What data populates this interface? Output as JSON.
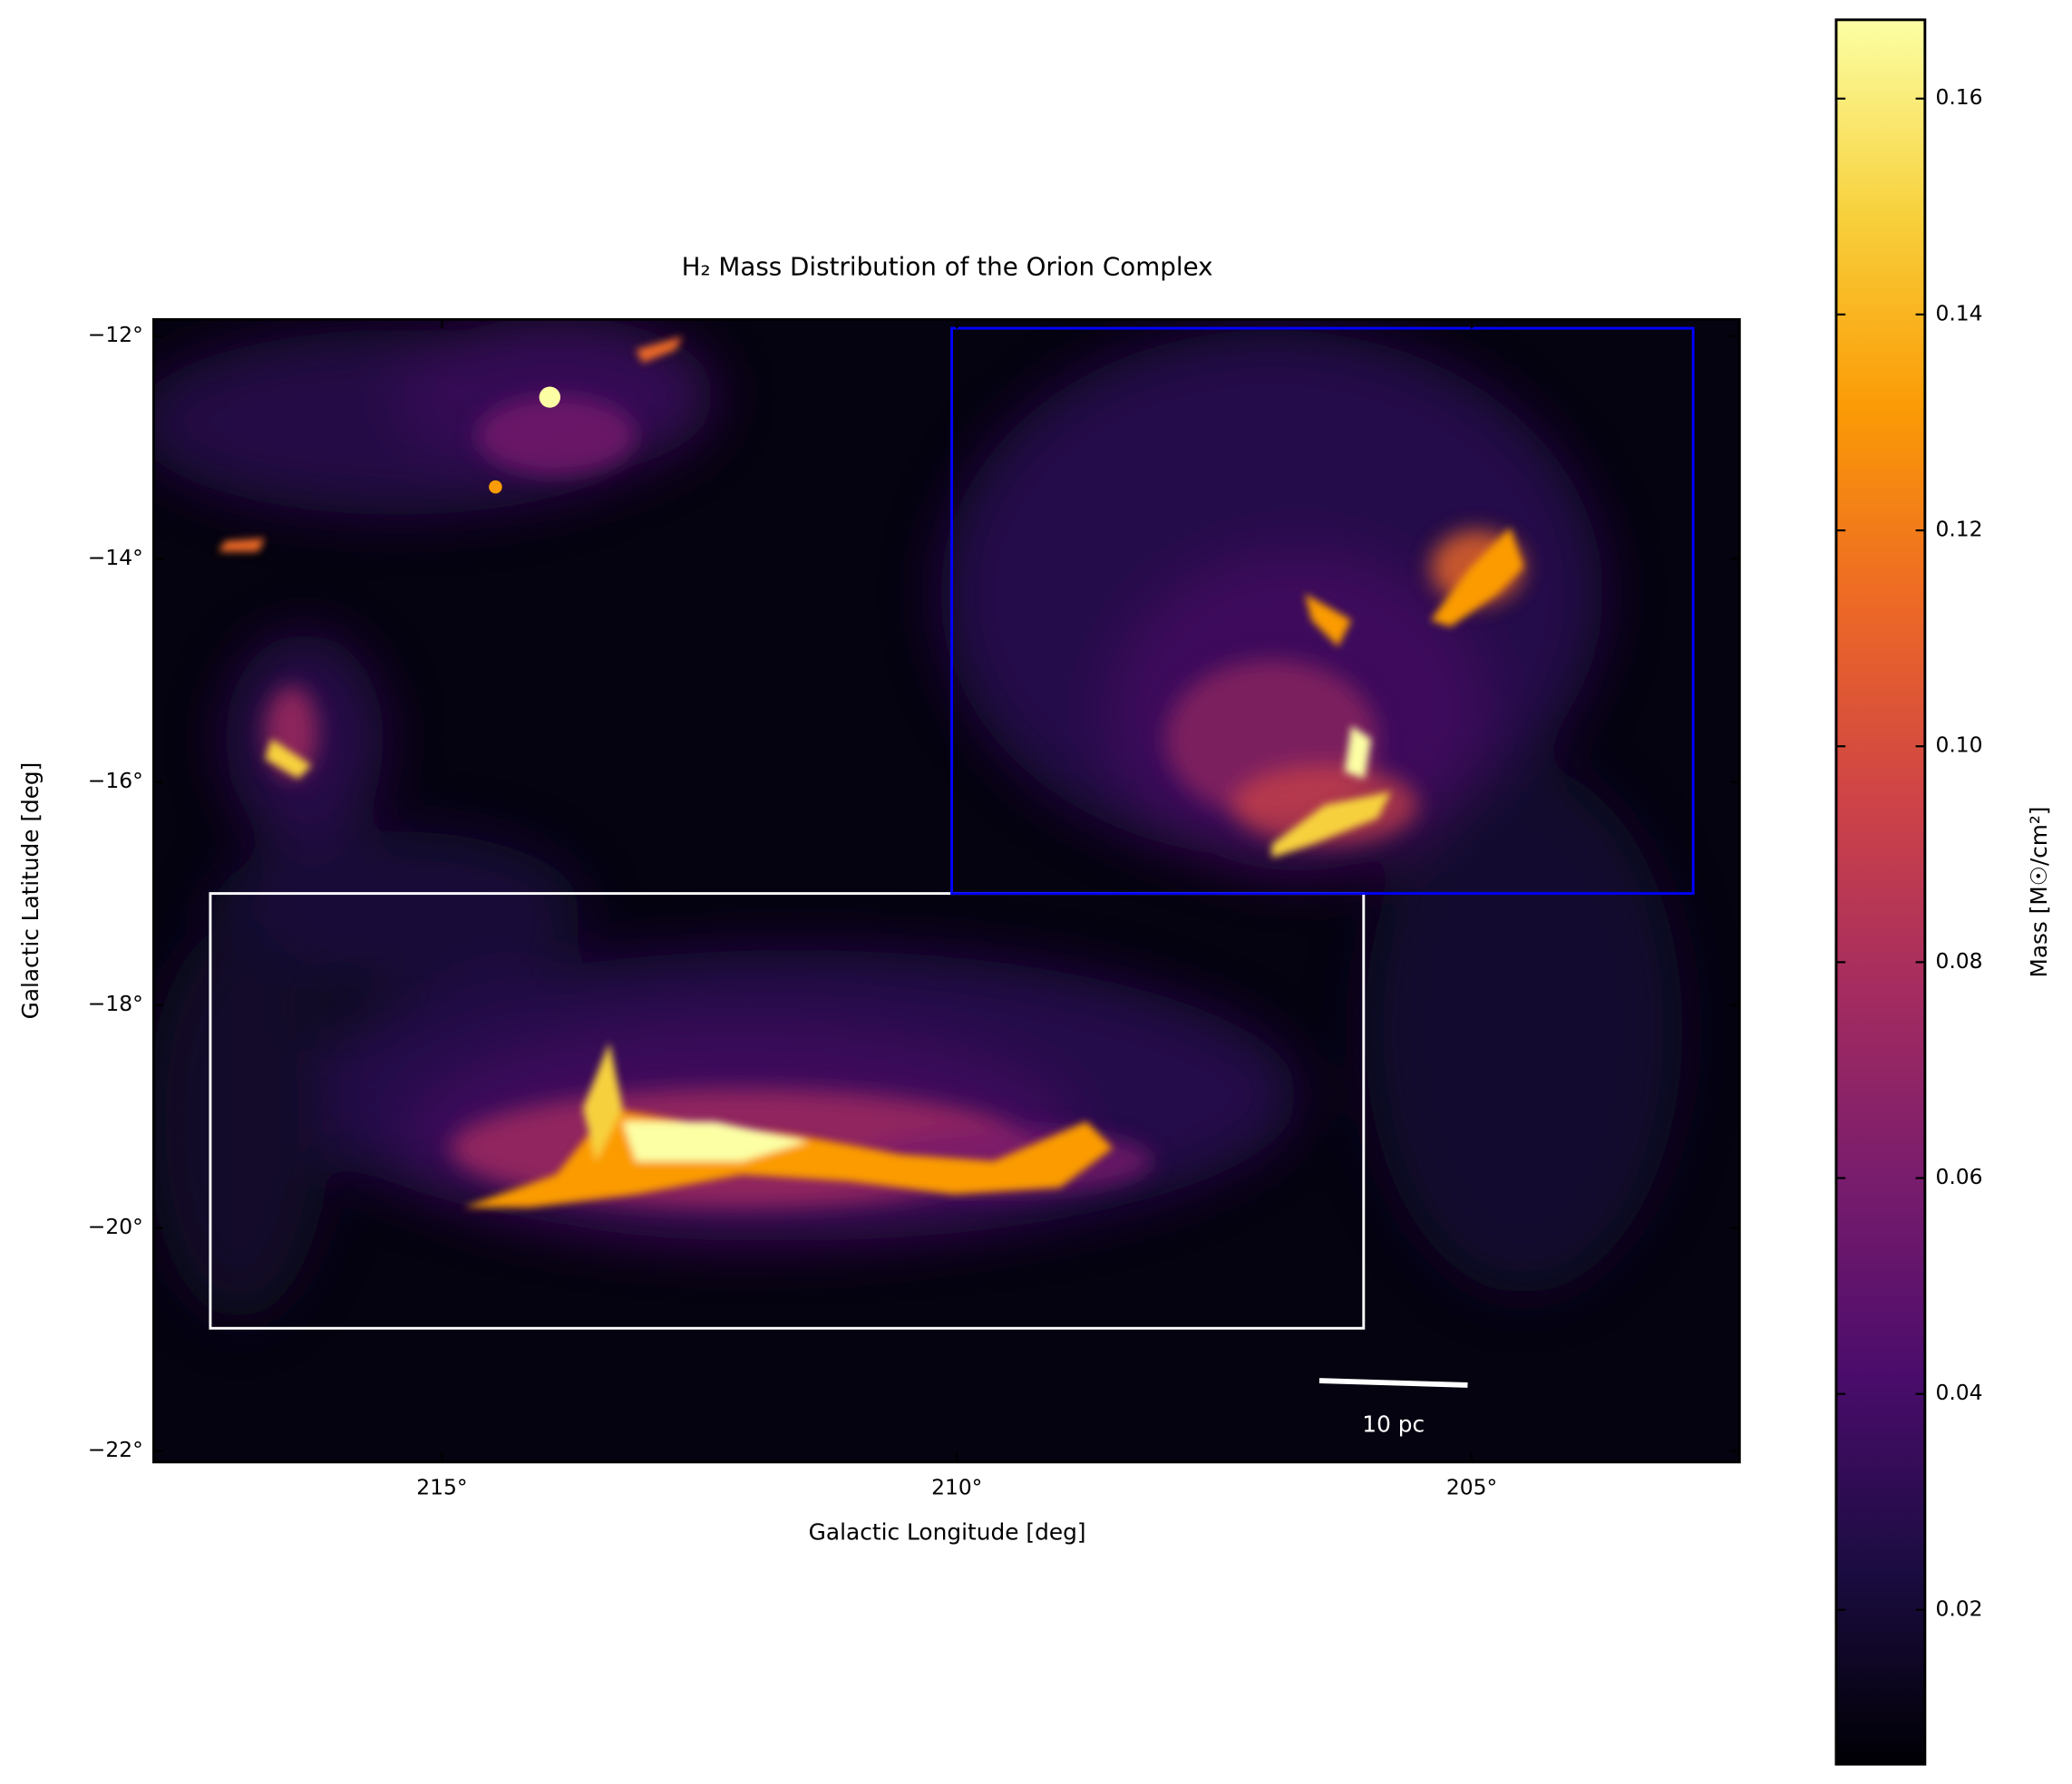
{
  "chart_data": {
    "type": "image",
    "title": "H₂ Mass Distribution of the Orion Complex",
    "xlabel": "Galactic Longitude [deg]",
    "ylabel": "Galactic Latitude [deg]",
    "xlim": [
      217.8,
      202.4
    ],
    "ylim": [
      -22.1,
      -11.85
    ],
    "xticks": [
      {
        "value": 215,
        "label": "215°"
      },
      {
        "value": 210,
        "label": "210°"
      },
      {
        "value": 205,
        "label": "205°"
      }
    ],
    "yticks": [
      {
        "value": -12,
        "label": "−12°"
      },
      {
        "value": -14,
        "label": "−14°"
      },
      {
        "value": -16,
        "label": "−16°"
      },
      {
        "value": -18,
        "label": "−18°"
      },
      {
        "value": -20,
        "label": "−20°"
      },
      {
        "value": -22,
        "label": "−22°"
      }
    ],
    "colorbar": {
      "label": "Mass [M☉/cm²]",
      "lim": [
        0.0057,
        0.1673
      ],
      "ticks": [
        0.02,
        0.04,
        0.06,
        0.08,
        {
          "value": 0.1,
          "label": "0.10"
        },
        0.12,
        0.14,
        0.16
      ],
      "colormap": "inferno",
      "colors": [
        "#000004",
        "#1b0c41",
        "#4a0c6b",
        "#781c6d",
        "#a52c60",
        "#cf4446",
        "#ed6925",
        "#fb9b06",
        "#f7d13d",
        "#fcffa4"
      ]
    },
    "regions": [
      {
        "color": "#ffffff",
        "x": [
          217.25,
          206.05
        ],
        "y": [
          -17.0,
          -20.9
        ]
      },
      {
        "color": "#0000ff",
        "x": [
          210.05,
          202.85
        ],
        "y": [
          -11.93,
          -17.0
        ]
      }
    ],
    "scalebar": {
      "label": "10 pc",
      "color": "#ffffff",
      "x": [
        206.48,
        205.04
      ],
      "y": [
        -21.37,
        -21.41
      ]
    }
  }
}
